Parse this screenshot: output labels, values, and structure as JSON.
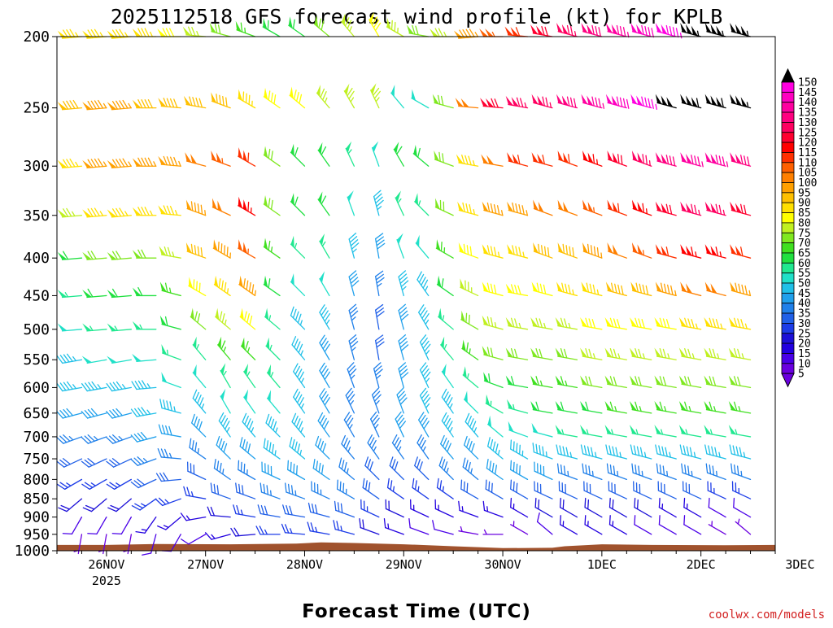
{
  "chart_data": {
    "type": "wind-barb-profile",
    "title": "2025112518 GFS forecast wind profile (kt) for KPLB",
    "xlabel": "Forecast Time (UTC)",
    "ylabel": "",
    "credit": "coolwx.com/models",
    "units": "kt",
    "y_axis": {
      "scale": "log-pressure",
      "range": [
        1000,
        200
      ],
      "ticks": [
        200,
        250,
        300,
        350,
        400,
        450,
        500,
        550,
        600,
        650,
        700,
        750,
        800,
        850,
        900,
        950,
        1000
      ]
    },
    "x_axis": {
      "range_hours": [
        -6,
        168
      ],
      "ticks": [
        {
          "label": "26NOV",
          "sublabel": "2025",
          "hour": 6
        },
        {
          "label": "27NOV",
          "sublabel": "",
          "hour": 30
        },
        {
          "label": "28NOV",
          "sublabel": "",
          "hour": 54
        },
        {
          "label": "29NOV",
          "sublabel": "",
          "hour": 78
        },
        {
          "label": "30NOV",
          "sublabel": "",
          "hour": 102
        },
        {
          "label": "1DEC",
          "sublabel": "",
          "hour": 126
        },
        {
          "label": "2DEC",
          "sublabel": "",
          "hour": 150
        },
        {
          "label": "3DEC",
          "sublabel": "",
          "hour": 174
        }
      ]
    },
    "colorbar": {
      "levels": [
        5,
        10,
        15,
        20,
        25,
        30,
        35,
        40,
        45,
        50,
        55,
        60,
        65,
        70,
        75,
        80,
        85,
        90,
        95,
        100,
        105,
        110,
        115,
        120,
        125,
        130,
        135,
        140,
        145,
        150
      ],
      "colors": [
        "#6a00e0",
        "#4a00e8",
        "#2200e0",
        "#1c10d8",
        "#1c3ce8",
        "#2060e8",
        "#2080ea",
        "#20a0ec",
        "#20c0e8",
        "#20e0c8",
        "#20e890",
        "#20e040",
        "#40e020",
        "#80e820",
        "#c0f020",
        "#ffff00",
        "#ffe000",
        "#ffc000",
        "#ffa000",
        "#ff8000",
        "#ff6000",
        "#ff3000",
        "#ff0000",
        "#ff0030",
        "#ff0060",
        "#ff0080",
        "#ff00a0",
        "#ff00c0",
        "#ff00e0",
        "#000000"
      ]
    },
    "terrain_color": "#a0522d",
    "terrain_hpa": [
      {
        "hour": -6,
        "p": 982
      },
      {
        "hour": 6,
        "p": 982
      },
      {
        "hour": 18,
        "p": 979
      },
      {
        "hour": 36,
        "p": 980
      },
      {
        "hour": 52,
        "p": 978
      },
      {
        "hour": 58,
        "p": 974
      },
      {
        "hour": 66,
        "p": 976
      },
      {
        "hour": 78,
        "p": 980
      },
      {
        "hour": 90,
        "p": 986
      },
      {
        "hour": 102,
        "p": 992
      },
      {
        "hour": 114,
        "p": 991
      },
      {
        "hour": 117,
        "p": 986
      },
      {
        "hour": 126,
        "p": 980
      },
      {
        "hour": 138,
        "p": 982
      },
      {
        "hour": 156,
        "p": 983
      },
      {
        "hour": 168,
        "p": 982
      }
    ],
    "levels_hpa": [
      200,
      250,
      300,
      350,
      400,
      450,
      500,
      550,
      600,
      650,
      700,
      750,
      800,
      850,
      900,
      950
    ],
    "forecast_hours": [
      0,
      6,
      12,
      18,
      24,
      30,
      36,
      42,
      48,
      54,
      60,
      66,
      72,
      78,
      84,
      90,
      96,
      102,
      108,
      114,
      120,
      126,
      132,
      138,
      144,
      150,
      156,
      162,
      168
    ],
    "wind_dir_deg": [
      [
        265,
        265,
        265,
        270,
        270,
        275,
        285,
        290,
        300,
        305,
        310,
        320,
        330,
        300,
        280,
        270,
        265,
        270,
        275,
        280,
        285,
        285,
        285,
        285,
        285,
        285,
        285,
        285,
        285
      ],
      [
        265,
        265,
        265,
        270,
        275,
        280,
        290,
        300,
        305,
        310,
        320,
        330,
        335,
        320,
        300,
        285,
        275,
        275,
        280,
        285,
        285,
        285,
        285,
        285,
        285,
        285,
        285,
        285,
        285
      ],
      [
        265,
        265,
        265,
        270,
        275,
        285,
        290,
        300,
        305,
        315,
        325,
        335,
        340,
        330,
        310,
        290,
        280,
        280,
        285,
        285,
        290,
        290,
        290,
        290,
        285,
        285,
        285,
        285,
        285
      ],
      [
        265,
        265,
        265,
        270,
        275,
        290,
        295,
        300,
        305,
        315,
        325,
        340,
        345,
        335,
        315,
        295,
        285,
        285,
        285,
        290,
        290,
        290,
        290,
        290,
        285,
        285,
        285,
        285,
        285
      ],
      [
        265,
        265,
        265,
        270,
        280,
        290,
        300,
        300,
        305,
        315,
        330,
        345,
        350,
        340,
        320,
        300,
        290,
        285,
        285,
        290,
        290,
        290,
        290,
        290,
        285,
        285,
        285,
        285,
        285
      ],
      [
        265,
        265,
        265,
        270,
        285,
        300,
        305,
        305,
        305,
        315,
        330,
        345,
        350,
        345,
        325,
        305,
        295,
        285,
        280,
        285,
        285,
        285,
        285,
        285,
        285,
        285,
        285,
        285,
        285
      ],
      [
        265,
        265,
        265,
        270,
        285,
        310,
        310,
        310,
        310,
        315,
        330,
        345,
        350,
        345,
        330,
        310,
        300,
        285,
        280,
        280,
        280,
        280,
        280,
        280,
        280,
        280,
        280,
        280,
        280
      ],
      [
        260,
        260,
        260,
        265,
        290,
        320,
        320,
        315,
        315,
        320,
        330,
        345,
        350,
        345,
        335,
        320,
        305,
        285,
        280,
        280,
        280,
        280,
        280,
        280,
        280,
        280,
        280,
        280,
        280
      ],
      [
        260,
        260,
        260,
        265,
        290,
        320,
        330,
        325,
        320,
        325,
        330,
        340,
        345,
        345,
        335,
        325,
        310,
        290,
        280,
        280,
        280,
        280,
        280,
        280,
        280,
        280,
        280,
        280,
        280
      ],
      [
        255,
        255,
        255,
        260,
        285,
        320,
        330,
        325,
        320,
        325,
        330,
        335,
        340,
        340,
        335,
        325,
        315,
        300,
        285,
        280,
        280,
        280,
        280,
        280,
        280,
        280,
        280,
        280,
        280
      ],
      [
        250,
        250,
        250,
        255,
        280,
        315,
        325,
        320,
        315,
        320,
        325,
        330,
        335,
        335,
        330,
        325,
        320,
        310,
        290,
        285,
        280,
        280,
        280,
        280,
        280,
        280,
        280,
        280,
        280
      ],
      [
        245,
        245,
        245,
        250,
        275,
        305,
        315,
        310,
        305,
        310,
        315,
        320,
        325,
        325,
        325,
        320,
        315,
        310,
        300,
        290,
        285,
        285,
        285,
        285,
        285,
        285,
        285,
        285,
        285
      ],
      [
        240,
        240,
        240,
        245,
        265,
        295,
        305,
        300,
        295,
        300,
        305,
        310,
        315,
        315,
        315,
        315,
        310,
        305,
        300,
        295,
        290,
        290,
        290,
        290,
        290,
        290,
        290,
        290,
        290
      ],
      [
        230,
        230,
        230,
        235,
        250,
        280,
        290,
        290,
        290,
        290,
        295,
        300,
        305,
        305,
        305,
        305,
        300,
        300,
        300,
        295,
        295,
        295,
        295,
        295,
        295,
        295,
        295,
        295,
        290
      ],
      [
        210,
        210,
        210,
        215,
        230,
        260,
        275,
        280,
        280,
        280,
        285,
        290,
        295,
        295,
        295,
        295,
        290,
        290,
        300,
        300,
        300,
        300,
        300,
        300,
        300,
        300,
        300,
        300,
        290
      ],
      [
        190,
        190,
        190,
        195,
        210,
        240,
        255,
        265,
        270,
        275,
        280,
        285,
        290,
        290,
        290,
        285,
        280,
        270,
        300,
        310,
        300,
        300,
        300,
        300,
        300,
        300,
        300,
        310,
        300
      ]
    ],
    "wind_speed_kt": [
      [
        85,
        85,
        85,
        85,
        80,
        75,
        70,
        65,
        60,
        60,
        70,
        75,
        80,
        75,
        70,
        75,
        95,
        105,
        110,
        120,
        125,
        130,
        135,
        140,
        145,
        155,
        155,
        155,
        140
      ],
      [
        90,
        95,
        95,
        90,
        90,
        90,
        90,
        85,
        80,
        80,
        75,
        75,
        75,
        50,
        50,
        70,
        100,
        120,
        125,
        125,
        130,
        135,
        140,
        145,
        150,
        160,
        160,
        155,
        140
      ],
      [
        85,
        95,
        95,
        95,
        95,
        100,
        105,
        110,
        70,
        60,
        60,
        55,
        50,
        60,
        60,
        70,
        85,
        100,
        110,
        110,
        110,
        115,
        120,
        125,
        130,
        135,
        135,
        130,
        120
      ],
      [
        75,
        85,
        85,
        85,
        85,
        95,
        100,
        115,
        70,
        60,
        60,
        50,
        45,
        55,
        55,
        70,
        85,
        95,
        95,
        100,
        100,
        105,
        110,
        115,
        120,
        125,
        125,
        120,
        110
      ],
      [
        60,
        70,
        70,
        70,
        75,
        90,
        95,
        105,
        65,
        55,
        55,
        45,
        40,
        50,
        50,
        65,
        80,
        85,
        85,
        90,
        90,
        95,
        100,
        105,
        110,
        115,
        115,
        110,
        100
      ],
      [
        55,
        60,
        60,
        60,
        65,
        80,
        85,
        95,
        60,
        50,
        50,
        40,
        35,
        45,
        45,
        60,
        75,
        80,
        80,
        80,
        85,
        85,
        90,
        90,
        95,
        100,
        100,
        95,
        90
      ],
      [
        50,
        55,
        55,
        55,
        60,
        70,
        75,
        80,
        55,
        45,
        45,
        35,
        30,
        40,
        45,
        55,
        70,
        75,
        75,
        75,
        75,
        80,
        80,
        80,
        80,
        85,
        85,
        85,
        80
      ],
      [
        45,
        50,
        50,
        50,
        55,
        55,
        65,
        65,
        55,
        45,
        40,
        35,
        30,
        40,
        45,
        55,
        65,
        70,
        70,
        70,
        70,
        75,
        75,
        75,
        75,
        75,
        75,
        75,
        75
      ],
      [
        45,
        45,
        45,
        45,
        50,
        50,
        55,
        55,
        55,
        45,
        40,
        35,
        35,
        40,
        45,
        50,
        55,
        60,
        60,
        65,
        65,
        70,
        70,
        70,
        70,
        70,
        70,
        70,
        70
      ],
      [
        40,
        40,
        40,
        45,
        45,
        45,
        50,
        50,
        50,
        45,
        40,
        35,
        35,
        40,
        45,
        45,
        50,
        55,
        55,
        60,
        60,
        60,
        65,
        65,
        65,
        65,
        65,
        65,
        65
      ],
      [
        35,
        35,
        35,
        40,
        40,
        40,
        45,
        45,
        45,
        45,
        40,
        35,
        35,
        40,
        40,
        45,
        45,
        50,
        50,
        50,
        55,
        55,
        55,
        55,
        55,
        55,
        55,
        55,
        55
      ],
      [
        30,
        30,
        30,
        35,
        35,
        35,
        40,
        40,
        45,
        45,
        40,
        35,
        35,
        35,
        35,
        40,
        40,
        45,
        45,
        45,
        45,
        45,
        45,
        45,
        45,
        45,
        45,
        45,
        45
      ],
      [
        25,
        25,
        25,
        30,
        30,
        30,
        35,
        35,
        40,
        40,
        40,
        35,
        30,
        30,
        30,
        35,
        35,
        40,
        40,
        40,
        35,
        35,
        35,
        35,
        35,
        35,
        35,
        35,
        35
      ],
      [
        20,
        20,
        20,
        25,
        25,
        25,
        30,
        30,
        35,
        35,
        35,
        35,
        30,
        25,
        25,
        25,
        30,
        30,
        30,
        30,
        30,
        30,
        30,
        30,
        30,
        30,
        25,
        25,
        25
      ],
      [
        10,
        10,
        10,
        15,
        15,
        15,
        20,
        25,
        30,
        30,
        30,
        30,
        25,
        20,
        15,
        15,
        15,
        15,
        15,
        20,
        20,
        20,
        20,
        20,
        15,
        15,
        10,
        10,
        10
      ],
      [
        5,
        5,
        5,
        10,
        10,
        10,
        15,
        20,
        25,
        25,
        25,
        25,
        20,
        15,
        10,
        10,
        5,
        5,
        5,
        10,
        15,
        15,
        15,
        10,
        10,
        10,
        5,
        5,
        5
      ]
    ]
  }
}
